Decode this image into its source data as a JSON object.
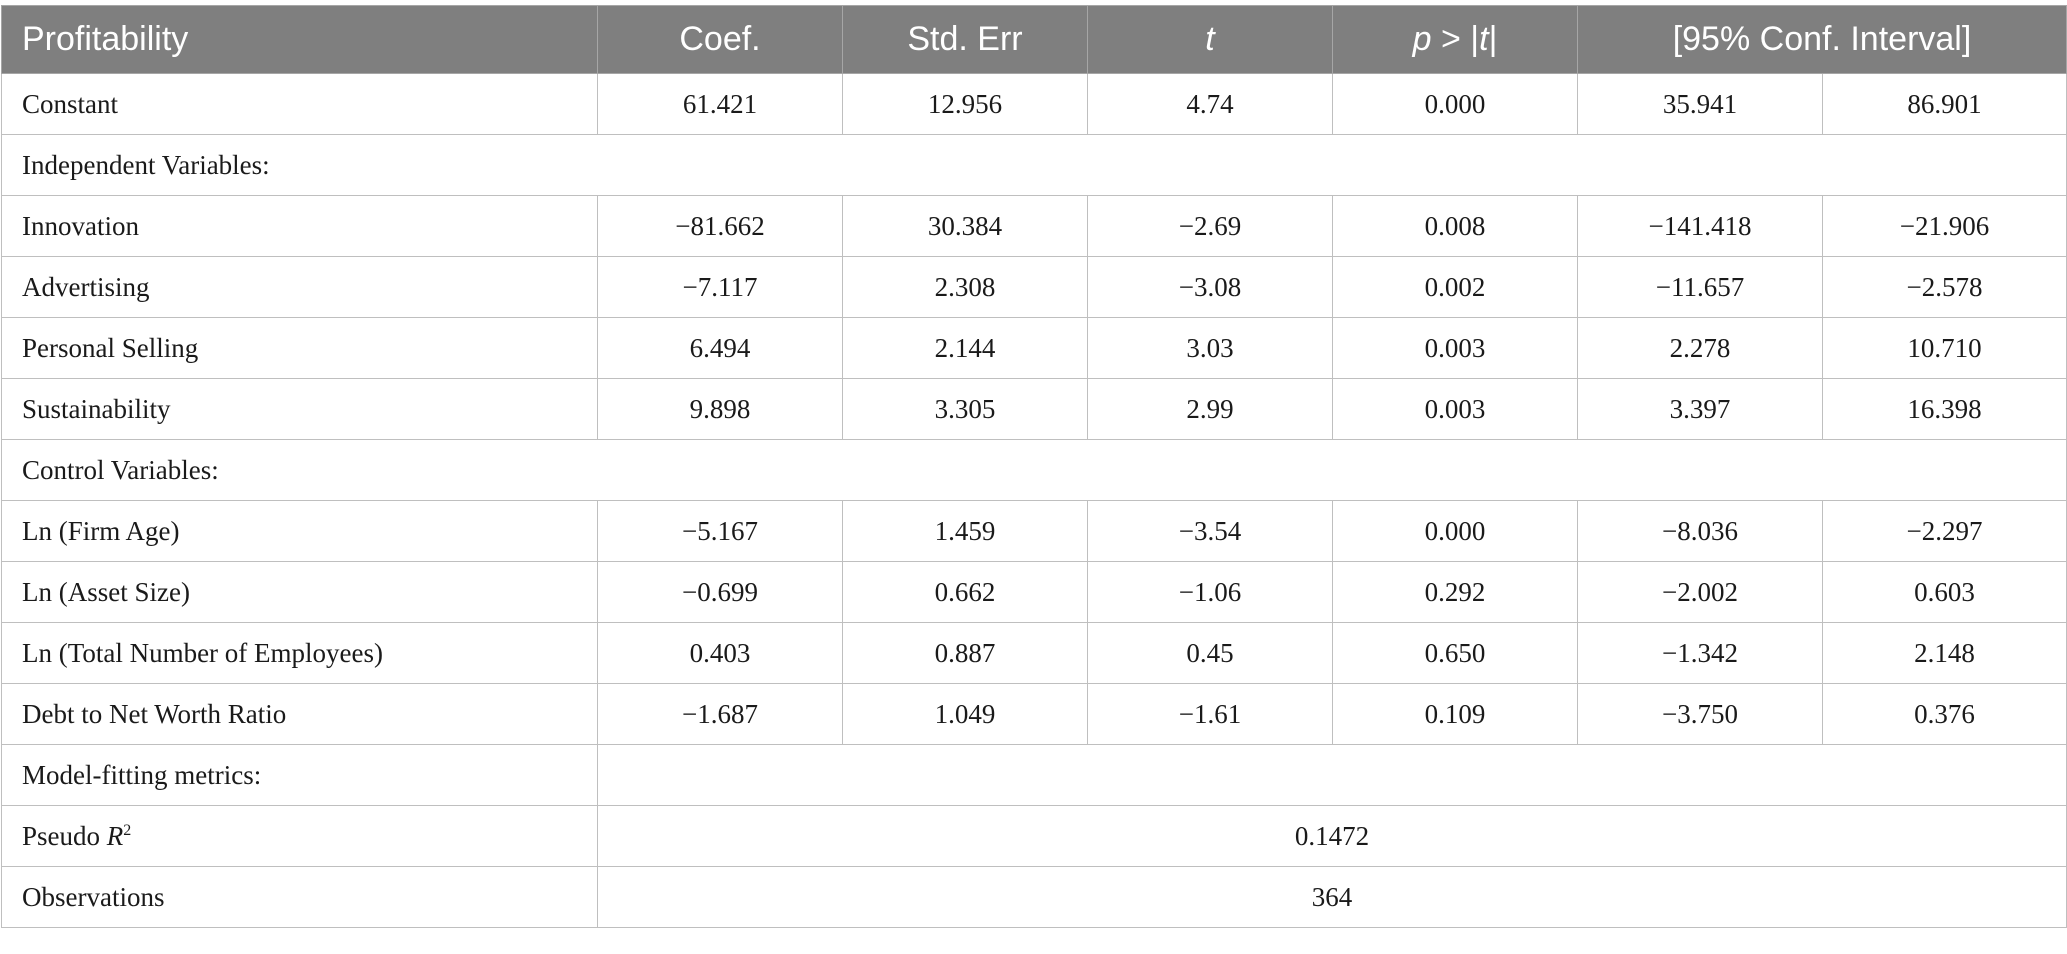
{
  "header": {
    "profitability": "Profitability",
    "coef": "Coef.",
    "std_err": "Std. Err",
    "t": "t",
    "p_prefix": "p",
    "p_op": " > |",
    "p_t": "t",
    "p_close": "|",
    "conf_interval": "[95% Conf. Interval]"
  },
  "constant": {
    "label": "Constant",
    "values": [
      "61.421",
      "12.956",
      "4.74",
      "0.000",
      "35.941",
      "86.901"
    ]
  },
  "section_independent": "Independent Variables:",
  "independent_rows": [
    {
      "label": "Innovation",
      "values": [
        "−81.662",
        "30.384",
        "−2.69",
        "0.008",
        "−141.418",
        "−21.906"
      ]
    },
    {
      "label": "Advertising",
      "values": [
        "−7.117",
        "2.308",
        "−3.08",
        "0.002",
        "−11.657",
        "−2.578"
      ]
    },
    {
      "label": "Personal Selling",
      "values": [
        "6.494",
        "2.144",
        "3.03",
        "0.003",
        "2.278",
        "10.710"
      ]
    },
    {
      "label": "Sustainability",
      "values": [
        "9.898",
        "3.305",
        "2.99",
        "0.003",
        "3.397",
        "16.398"
      ]
    }
  ],
  "section_control": "Control Variables:",
  "control_rows": [
    {
      "label": "Ln (Firm Age)",
      "values": [
        "−5.167",
        "1.459",
        "−3.54",
        "0.000",
        "−8.036",
        "−2.297"
      ]
    },
    {
      "label": "Ln (Asset Size)",
      "values": [
        "−0.699",
        "0.662",
        "−1.06",
        "0.292",
        "−2.002",
        "0.603"
      ]
    },
    {
      "label": "Ln (Total Number of Employees)",
      "values": [
        "0.403",
        "0.887",
        "0.45",
        "0.650",
        "−1.342",
        "2.148"
      ]
    },
    {
      "label": "Debt to Net Worth Ratio",
      "values": [
        "−1.687",
        "1.049",
        "−1.61",
        "0.109",
        "−3.750",
        "0.376"
      ]
    }
  ],
  "section_model": "Model-fitting metrics:",
  "pseudo_r2": {
    "label_prefix": "Pseudo ",
    "label_r": "R",
    "label_sup": "2",
    "value": "0.1472"
  },
  "observations": {
    "label": "Observations",
    "value": "364"
  }
}
